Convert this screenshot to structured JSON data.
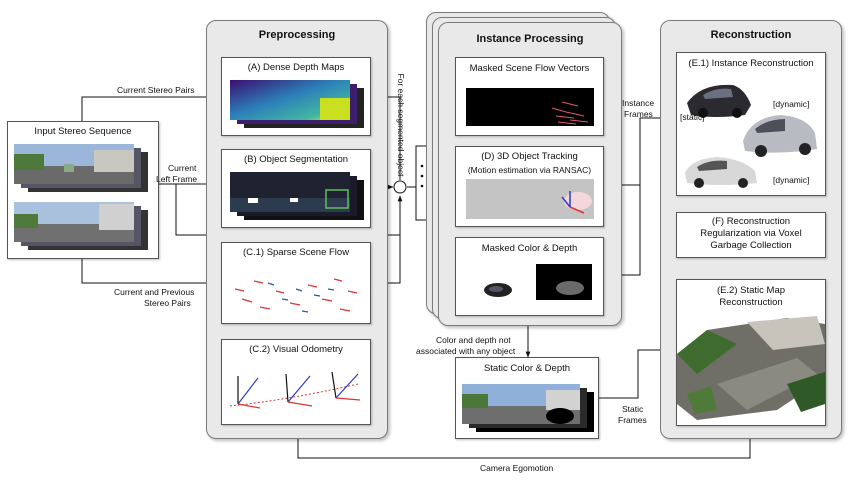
{
  "input": {
    "title": "Input Stereo Sequence"
  },
  "preprocessing": {
    "title": "Preprocessing",
    "depth": "(A) Dense Depth Maps",
    "segmentation": "(B) Object Segmentation",
    "sparse_flow": "(C.1) Sparse Scene Flow",
    "odometry": "(C.2) Visual Odometry"
  },
  "instance": {
    "title": "Instance Processing",
    "flow_vectors": "Masked Scene Flow Vectors",
    "tracking": "(D) 3D Object Tracking",
    "tracking_sub": "(Motion estimation via RANSAC)",
    "masked_color": "Masked Color & Depth"
  },
  "static_box": {
    "title": "Static Color & Depth"
  },
  "reconstruction": {
    "title": "Reconstruction",
    "instance_recon": "(E.1) Instance Reconstruction",
    "tag_static": "[static]",
    "tag_dynamic_1": "[dynamic]",
    "tag_dynamic_2": "[dynamic]",
    "regularization_line1": "(F) Reconstruction",
    "regularization_line2": "Regularization via Voxel",
    "regularization_line3": "Garbage Collection",
    "static_map_line1": "(E.2) Static Map",
    "static_map_line2": "Reconstruction"
  },
  "labels": {
    "current_stereo_pairs": "Current Stereo Pairs",
    "current_left_1": "Current",
    "current_left_2": "Left Frame",
    "current_prev_1": "Current and Previous",
    "current_prev_2": "Stereo Pairs",
    "for_each_segmented": "For each segmented object",
    "instance_frames_1": "Instance",
    "instance_frames_2": "Frames",
    "not_associated_1": "Color and depth not",
    "not_associated_2": "associated with any object",
    "static_frames_1": "Static",
    "static_frames_2": "Frames",
    "camera_egomotion": "Camera Egomotion"
  }
}
